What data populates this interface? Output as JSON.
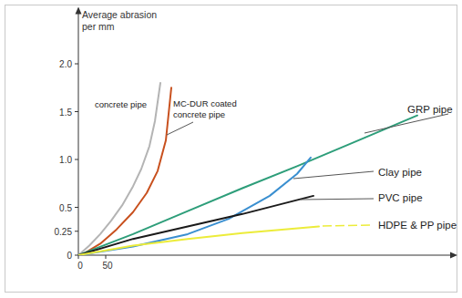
{
  "chart_data": {
    "type": "line",
    "y_label": "Average abrasion per mm",
    "xlim": [
      0,
      690
    ],
    "ylim": [
      0,
      2.5
    ],
    "xticks": [
      0,
      50
    ],
    "yticks": [
      0,
      0.25,
      0.5,
      {
        "value": 1,
        "label": "1.0"
      },
      1.5,
      {
        "value": 2,
        "label": "2.0"
      }
    ],
    "grid": false,
    "series": [
      {
        "name": "concrete pipe",
        "color": "#b4b4b4",
        "x": [
          0,
          20,
          40,
          60,
          80,
          100,
          115,
          130,
          140,
          150
        ],
        "values": [
          0,
          0.1,
          0.22,
          0.36,
          0.52,
          0.72,
          0.9,
          1.14,
          1.4,
          1.8
        ]
      },
      {
        "name": "MC-DUR coated concrete pipe",
        "color": "#c8501e",
        "x": [
          5,
          40,
          70,
          100,
          125,
          145,
          160,
          170
        ],
        "values": [
          0,
          0.12,
          0.27,
          0.45,
          0.65,
          0.88,
          1.2,
          1.75
        ]
      },
      {
        "name": "GRP pipe",
        "color": "#2e9e7a",
        "x": [
          0,
          100,
          200,
          300,
          400,
          500,
          620
        ],
        "values": [
          0,
          0.22,
          0.46,
          0.7,
          0.93,
          1.17,
          1.46
        ]
      },
      {
        "name": "Clay pipe",
        "color": "#3a8fd0",
        "x": [
          0,
          100,
          200,
          275,
          350,
          400,
          425
        ],
        "values": [
          0,
          0.09,
          0.22,
          0.38,
          0.62,
          0.85,
          1.02
        ]
      },
      {
        "name": "PVC pipe",
        "color": "#1a1a1a",
        "x": [
          0,
          100,
          200,
          300,
          430
        ],
        "values": [
          0,
          0.17,
          0.3,
          0.43,
          0.62
        ]
      },
      {
        "name": "HDPE & PP pipe",
        "color": "#ecec3a",
        "x": [
          0,
          100,
          200,
          300,
          440
        ],
        "values": [
          0,
          0.1,
          0.17,
          0.23,
          0.3
        ]
      }
    ]
  }
}
